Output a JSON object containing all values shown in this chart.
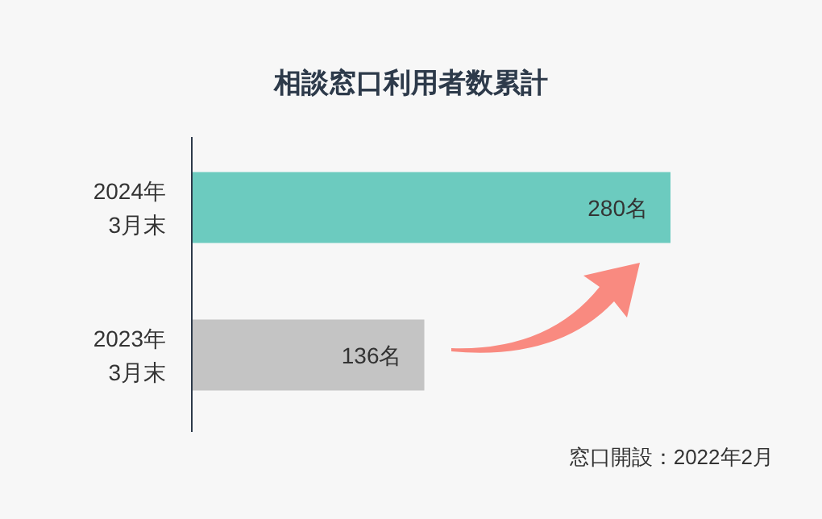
{
  "chart_data": {
    "type": "bar",
    "orientation": "horizontal",
    "title": "相談窓口利用者数累計",
    "categories": [
      "2024年\n3月末",
      "2023年\n3月末"
    ],
    "values": [
      280,
      136
    ],
    "colors": [
      "#6ccbbf",
      "#c4c4c4"
    ],
    "value_labels": [
      "280名",
      "136名"
    ],
    "annotations": [
      "窓口開設：2022年2月"
    ]
  }
}
